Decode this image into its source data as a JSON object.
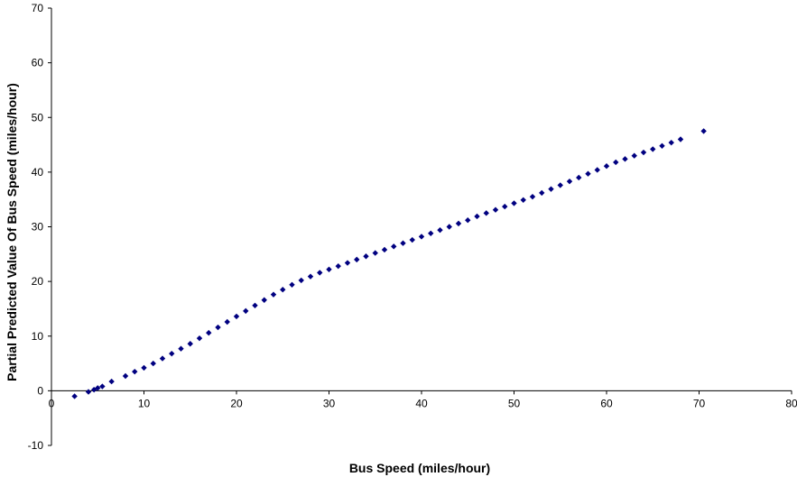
{
  "chart_data": {
    "type": "scatter",
    "xlabel": "Bus Speed (miles/hour)",
    "ylabel": "Partial Predicted Value Of Bus Speed (miles/hour)",
    "xlim": [
      0,
      80
    ],
    "ylim": [
      -10,
      70
    ],
    "xticks": [
      "0",
      "10",
      "20",
      "30",
      "40",
      "50",
      "60",
      "70",
      "80"
    ],
    "yticks": [
      "-10",
      "0",
      "10",
      "20",
      "30",
      "40",
      "50",
      "60",
      "70"
    ],
    "grid": false,
    "legend": "none",
    "marker_color": "#000080",
    "marker": "diamond",
    "series": [
      {
        "points": [
          [
            2.5,
            -1.0
          ],
          [
            4.0,
            -0.2
          ],
          [
            4.6,
            0.2
          ],
          [
            5.0,
            0.5
          ],
          [
            5.5,
            0.8
          ],
          [
            6.5,
            1.7
          ],
          [
            8.0,
            2.7
          ],
          [
            9.0,
            3.5
          ],
          [
            10.0,
            4.2
          ],
          [
            11.0,
            5.0
          ],
          [
            12.0,
            5.9
          ],
          [
            13.0,
            6.8
          ],
          [
            14.0,
            7.7
          ],
          [
            15.0,
            8.6
          ],
          [
            16.0,
            9.6
          ],
          [
            17.0,
            10.6
          ],
          [
            18.0,
            11.6
          ],
          [
            19.0,
            12.6
          ],
          [
            20.0,
            13.6
          ],
          [
            21.0,
            14.6
          ],
          [
            22.0,
            15.6
          ],
          [
            23.0,
            16.6
          ],
          [
            24.0,
            17.6
          ],
          [
            25.0,
            18.5
          ],
          [
            26.0,
            19.4
          ],
          [
            27.0,
            20.2
          ],
          [
            28.0,
            20.9
          ],
          [
            29.0,
            21.6
          ],
          [
            30.0,
            22.2
          ],
          [
            31.0,
            22.8
          ],
          [
            32.0,
            23.4
          ],
          [
            33.0,
            24.0
          ],
          [
            34.0,
            24.6
          ],
          [
            35.0,
            25.2
          ],
          [
            36.0,
            25.8
          ],
          [
            37.0,
            26.4
          ],
          [
            38.0,
            27.0
          ],
          [
            39.0,
            27.6
          ],
          [
            40.0,
            28.2
          ],
          [
            41.0,
            28.8
          ],
          [
            42.0,
            29.4
          ],
          [
            43.0,
            30.0
          ],
          [
            44.0,
            30.6
          ],
          [
            45.0,
            31.2
          ],
          [
            46.0,
            31.9
          ],
          [
            47.0,
            32.5
          ],
          [
            48.0,
            33.1
          ],
          [
            49.0,
            33.7
          ],
          [
            50.0,
            34.3
          ],
          [
            51.0,
            34.9
          ],
          [
            52.0,
            35.5
          ],
          [
            53.0,
            36.2
          ],
          [
            54.0,
            36.9
          ],
          [
            55.0,
            37.6
          ],
          [
            56.0,
            38.3
          ],
          [
            57.0,
            39.0
          ],
          [
            58.0,
            39.7
          ],
          [
            59.0,
            40.4
          ],
          [
            60.0,
            41.1
          ],
          [
            61.0,
            41.8
          ],
          [
            62.0,
            42.4
          ],
          [
            63.0,
            43.0
          ],
          [
            64.0,
            43.6
          ],
          [
            65.0,
            44.2
          ],
          [
            66.0,
            44.8
          ],
          [
            67.0,
            45.4
          ],
          [
            68.0,
            46.0
          ],
          [
            70.5,
            47.5
          ]
        ]
      }
    ]
  }
}
